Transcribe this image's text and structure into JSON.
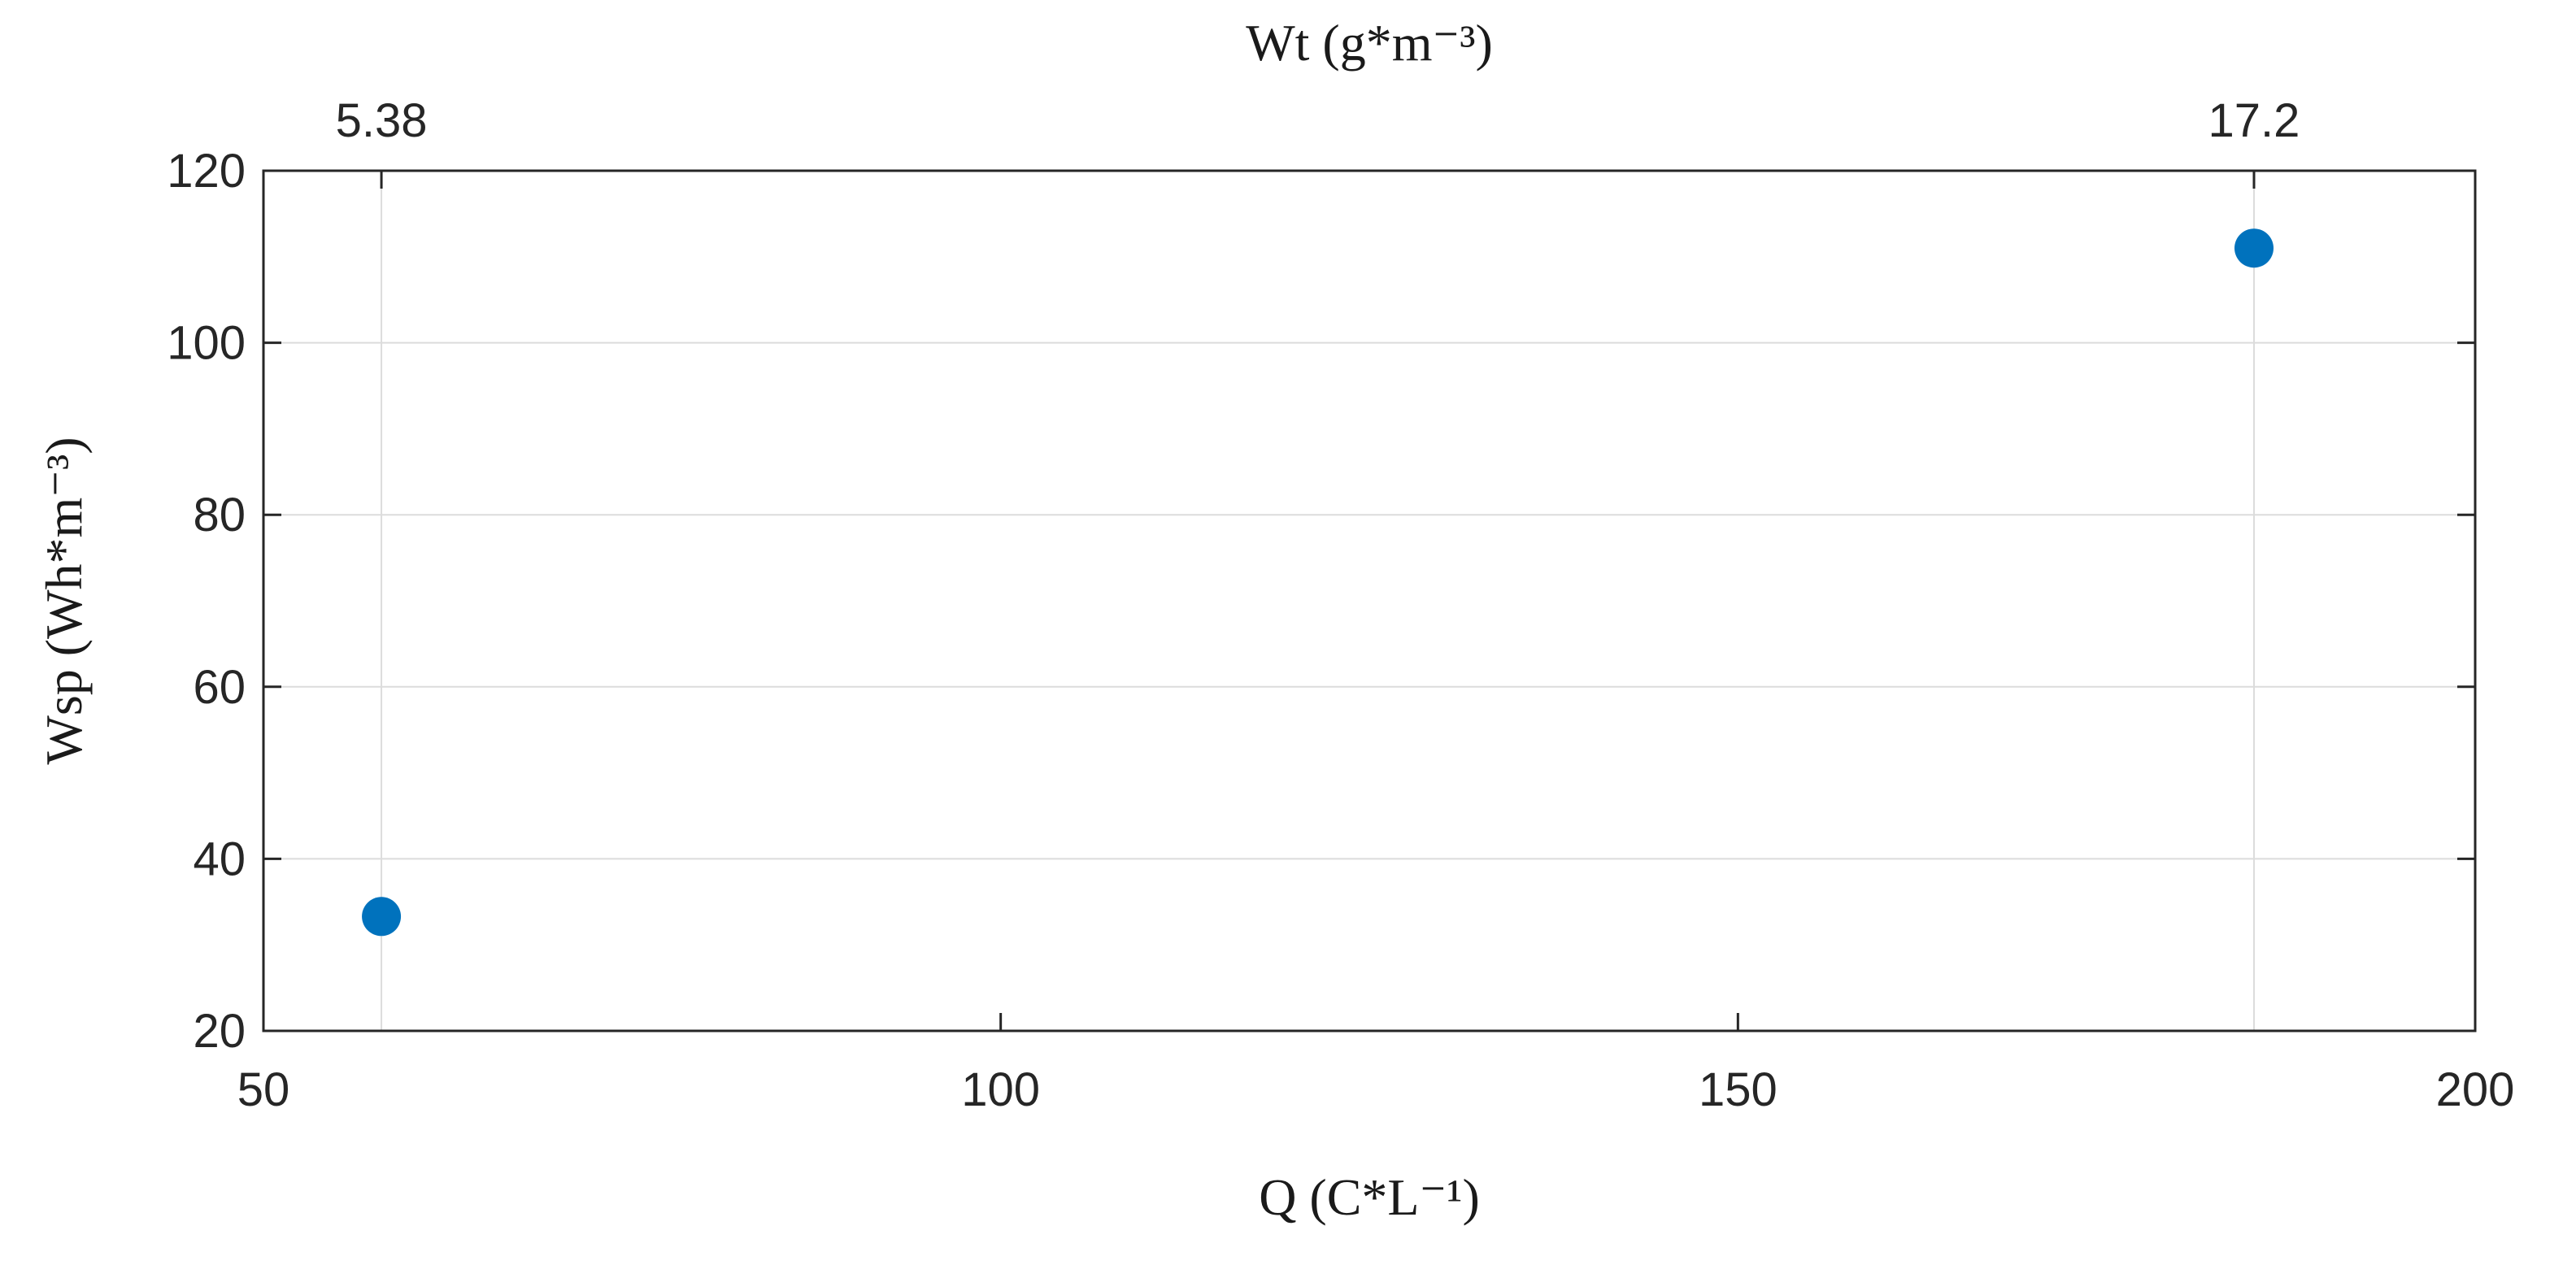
{
  "chart_data": {
    "type": "scatter",
    "xlabel": "Q (C*L⁻¹)",
    "ylabel": "Wsp (Wh*m⁻³)",
    "top_axis_label": "Wt (g*m⁻³)",
    "xlim": [
      50,
      200
    ],
    "ylim": [
      20,
      120
    ],
    "x_ticks": [
      50,
      100,
      150,
      200
    ],
    "y_ticks": [
      20,
      40,
      60,
      80,
      100,
      120
    ],
    "top_ticks": [
      {
        "at_x": 58,
        "label": "5.38"
      },
      {
        "at_x": 185,
        "label": "17.2"
      }
    ],
    "grid": true,
    "x": [
      58,
      185
    ],
    "y": [
      33.3,
      111
    ],
    "marker_color": "#0072BD"
  }
}
